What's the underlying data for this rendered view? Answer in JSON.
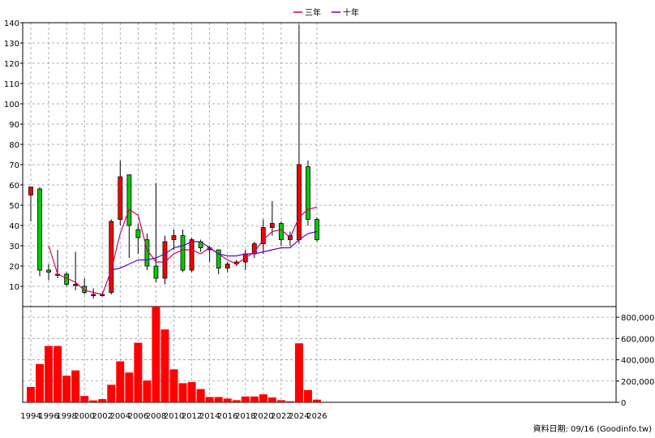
{
  "footer": {
    "source_text": "資料日期: 09/16 (Goodinfo.tw)"
  },
  "chart_data": {
    "type": "candlestick-with-volume",
    "legend": {
      "placement": "top-center",
      "items": [
        {
          "name": "三年",
          "color": "#cc0066"
        },
        {
          "name": "十年",
          "color": "#6600cc"
        }
      ]
    },
    "colors": {
      "up": "#ff0000",
      "down": "#00cc00",
      "volume": "#ff0000",
      "grid": "#999999"
    },
    "x_tick_labels": [
      "1994",
      "1996",
      "1998",
      "2000",
      "2002",
      "2004",
      "2006",
      "2008",
      "2010",
      "2012",
      "2014",
      "2016",
      "2018",
      "2020",
      "2022",
      "2024",
      "2026"
    ],
    "price_axis": {
      "range": [
        0,
        140
      ],
      "ticks": [
        10,
        20,
        30,
        40,
        50,
        60,
        70,
        80,
        90,
        100,
        110,
        120,
        130,
        140
      ]
    },
    "volume_axis": {
      "range": [
        0,
        900000
      ],
      "ticks": [
        0,
        200000,
        400000,
        600000,
        800000
      ],
      "tick_labels": [
        "0",
        "200,000",
        "400,000",
        "600,000",
        "800,000"
      ]
    },
    "candles": [
      {
        "year": 1994,
        "open": 55,
        "close": 59,
        "high": 59,
        "low": 42
      },
      {
        "year": 1995,
        "open": 58,
        "close": 18,
        "high": 59,
        "low": 15
      },
      {
        "year": 1996,
        "open": 18,
        "close": 17,
        "high": 21,
        "low": 13
      },
      {
        "year": 1997,
        "open": 16,
        "close": 16,
        "high": 28,
        "low": 14
      },
      {
        "year": 1998,
        "open": 16,
        "close": 11,
        "high": 17,
        "low": 10
      },
      {
        "year": 1999,
        "open": 11,
        "close": 11,
        "high": 27,
        "low": 8
      },
      {
        "year": 2000,
        "open": 10,
        "close": 7,
        "high": 14,
        "low": 6
      },
      {
        "year": 2001,
        "open": 6,
        "close": 6,
        "high": 9,
        "low": 4
      },
      {
        "year": 2002,
        "open": 6,
        "close": 6,
        "high": 7,
        "low": 5
      },
      {
        "year": 2003,
        "open": 7,
        "close": 42,
        "high": 43,
        "low": 6
      },
      {
        "year": 2004,
        "open": 43,
        "close": 64,
        "high": 72,
        "low": 40
      },
      {
        "year": 2005,
        "open": 65,
        "close": 40,
        "high": 65,
        "low": 24
      },
      {
        "year": 2006,
        "open": 38,
        "close": 34,
        "high": 41,
        "low": 26
      },
      {
        "year": 2007,
        "open": 33,
        "close": 20,
        "high": 36,
        "low": 18
      },
      {
        "year": 2008,
        "open": 20,
        "close": 14,
        "high": 61,
        "low": 12
      },
      {
        "year": 2009,
        "open": 14,
        "close": 32,
        "high": 35,
        "low": 11
      },
      {
        "year": 2010,
        "open": 33,
        "close": 35,
        "high": 38,
        "low": 28
      },
      {
        "year": 2011,
        "open": 35,
        "close": 18,
        "high": 38,
        "low": 17
      },
      {
        "year": 2012,
        "open": 18,
        "close": 33,
        "high": 34,
        "low": 17
      },
      {
        "year": 2013,
        "open": 32,
        "close": 29,
        "high": 33,
        "low": 27
      },
      {
        "year": 2014,
        "open": 28,
        "close": 29,
        "high": 30,
        "low": 22
      },
      {
        "year": 2015,
        "open": 28,
        "close": 19,
        "high": 28,
        "low": 16
      },
      {
        "year": 2016,
        "open": 19,
        "close": 21,
        "high": 22,
        "low": 17
      },
      {
        "year": 2017,
        "open": 21,
        "close": 22,
        "high": 23,
        "low": 20
      },
      {
        "year": 2018,
        "open": 22,
        "close": 26,
        "high": 28,
        "low": 18
      },
      {
        "year": 2019,
        "open": 26,
        "close": 31,
        "high": 32,
        "low": 24
      },
      {
        "year": 2020,
        "open": 31,
        "close": 39,
        "high": 43,
        "low": 26
      },
      {
        "year": 2021,
        "open": 39,
        "close": 41,
        "high": 52,
        "low": 35
      },
      {
        "year": 2022,
        "open": 41,
        "close": 33,
        "high": 42,
        "low": 30
      },
      {
        "year": 2023,
        "open": 33,
        "close": 35,
        "high": 37,
        "low": 30
      },
      {
        "year": 2024,
        "open": 33,
        "close": 70,
        "high": 139,
        "low": 31
      },
      {
        "year": 2025,
        "open": 69,
        "close": 43,
        "high": 72,
        "low": 40
      },
      {
        "year": 2026,
        "open": 43,
        "close": 33,
        "high": 44,
        "low": 32
      }
    ],
    "volume": [
      {
        "year": 1994,
        "value": 145000
      },
      {
        "year": 1995,
        "value": 360000
      },
      {
        "year": 1996,
        "value": 530000
      },
      {
        "year": 1997,
        "value": 530000
      },
      {
        "year": 1998,
        "value": 250000
      },
      {
        "year": 1999,
        "value": 300000
      },
      {
        "year": 2000,
        "value": 60000
      },
      {
        "year": 2001,
        "value": 18000
      },
      {
        "year": 2002,
        "value": 30000
      },
      {
        "year": 2003,
        "value": 165000
      },
      {
        "year": 2004,
        "value": 385000
      },
      {
        "year": 2005,
        "value": 280000
      },
      {
        "year": 2006,
        "value": 560000
      },
      {
        "year": 2007,
        "value": 205000
      },
      {
        "year": 2008,
        "value": 950000
      },
      {
        "year": 2009,
        "value": 685000
      },
      {
        "year": 2010,
        "value": 310000
      },
      {
        "year": 2011,
        "value": 180000
      },
      {
        "year": 2012,
        "value": 190000
      },
      {
        "year": 2013,
        "value": 125000
      },
      {
        "year": 2014,
        "value": 50000
      },
      {
        "year": 2015,
        "value": 50000
      },
      {
        "year": 2016,
        "value": 35000
      },
      {
        "year": 2017,
        "value": 20000
      },
      {
        "year": 2018,
        "value": 55000
      },
      {
        "year": 2019,
        "value": 55000
      },
      {
        "year": 2020,
        "value": 75000
      },
      {
        "year": 2021,
        "value": 45000
      },
      {
        "year": 2022,
        "value": 20000
      },
      {
        "year": 2023,
        "value": 10000
      },
      {
        "year": 2024,
        "value": 555000
      },
      {
        "year": 2025,
        "value": 115000
      },
      {
        "year": 2026,
        "value": 25000
      }
    ],
    "series": [
      {
        "name": "三年",
        "x": [
          1996,
          1997,
          1998,
          1999,
          2000,
          2001,
          2002,
          2003,
          2004,
          2005,
          2006,
          2007,
          2008,
          2009,
          2010,
          2011,
          2012,
          2013,
          2014,
          2015,
          2016,
          2017,
          2018,
          2019,
          2020,
          2021,
          2022,
          2023,
          2024,
          2025,
          2026
        ],
        "values": [
          30,
          16,
          14,
          12,
          8,
          7,
          6,
          18,
          36,
          48,
          45,
          28,
          22,
          22,
          26,
          28,
          28,
          26,
          29,
          26,
          23,
          21,
          24,
          27,
          33,
          37,
          38,
          34,
          44,
          48,
          49
        ]
      },
      {
        "name": "十年",
        "x": [
          2003,
          2004,
          2005,
          2006,
          2007,
          2008,
          2009,
          2010,
          2011,
          2012,
          2013,
          2014,
          2015,
          2016,
          2017,
          2018,
          2019,
          2020,
          2021,
          2022,
          2023,
          2024,
          2025,
          2026
        ],
        "values": [
          18,
          19,
          21,
          23,
          23,
          24,
          26,
          29,
          30,
          32,
          32,
          29,
          26,
          25,
          25,
          26,
          26,
          27,
          28,
          29,
          29,
          33,
          36,
          37
        ]
      }
    ]
  }
}
